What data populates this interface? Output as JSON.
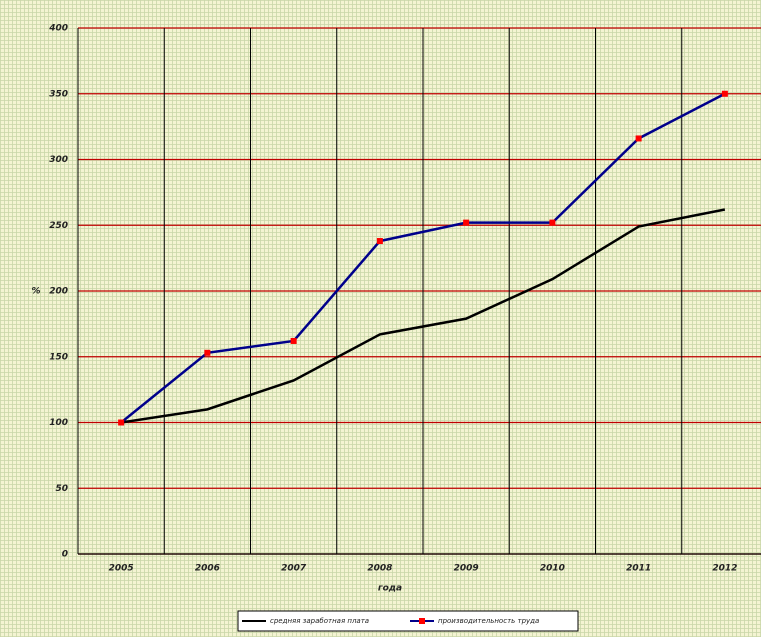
{
  "chart_data": {
    "type": "line",
    "x_label": "года",
    "y_label": "%",
    "categories": [
      "2005",
      "2006",
      "2007",
      "2008",
      "2009",
      "2010",
      "2011",
      "2012"
    ],
    "series": [
      {
        "name": "средняя заработная плата",
        "color": "#000000",
        "values": [
          100,
          110,
          132,
          167,
          179,
          209,
          249,
          262
        ]
      },
      {
        "name": "производительность труда",
        "color": "#00008b",
        "marker": "square",
        "marker_color": "#ff0000",
        "values": [
          100,
          153,
          162,
          238,
          252,
          252,
          316,
          350
        ]
      }
    ],
    "ylim": [
      0,
      400
    ],
    "yticks": [
      0,
      50,
      100,
      150,
      200,
      250,
      300,
      350,
      400
    ],
    "grid": true,
    "grid_color": "#c00000",
    "legend": "bottom"
  }
}
